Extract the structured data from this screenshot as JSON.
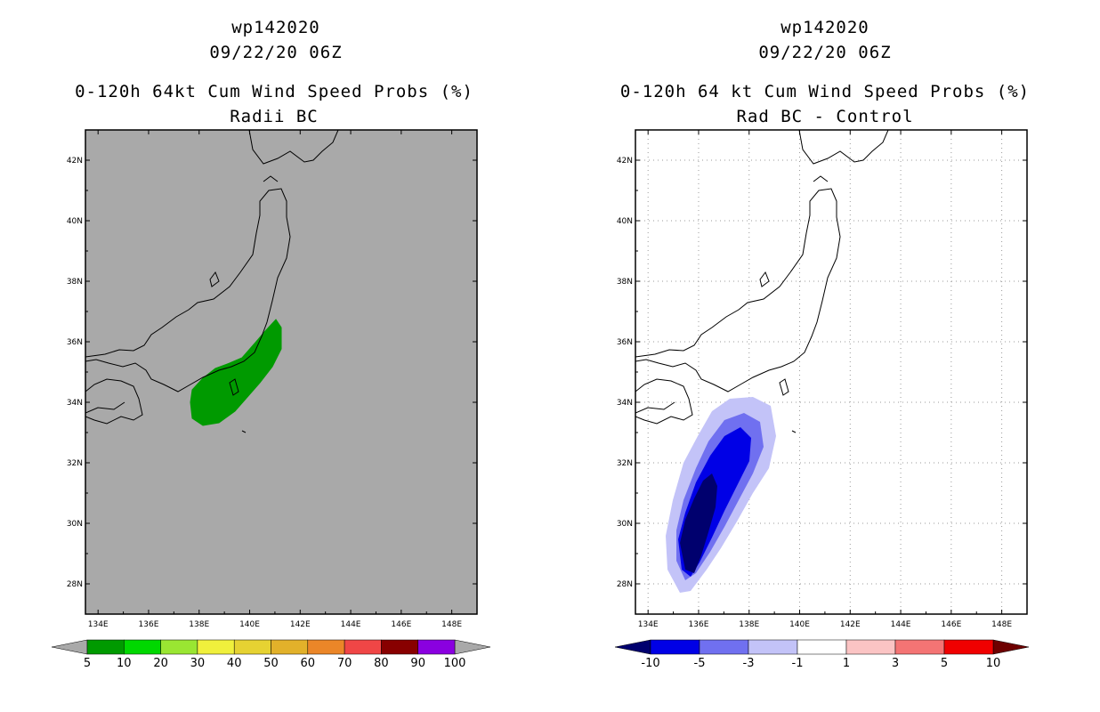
{
  "left_panel": {
    "title_line1": "wp142020",
    "title_line2": "09/22/20 06Z",
    "title_line3": "0-120h 64kt Cum Wind Speed Probs (%)",
    "title_line4": "Radii BC",
    "background_color": "#a9a9a9",
    "colorbar": {
      "colors": [
        "#009a00",
        "#00d800",
        "#9ae632",
        "#f0f03c",
        "#e6d232",
        "#e2b12a",
        "#eb8628",
        "#f04646",
        "#880000",
        "#8a00e0"
      ],
      "labels": [
        "5",
        "10",
        "20",
        "30",
        "40",
        "50",
        "60",
        "70",
        "80",
        "90",
        "100"
      ],
      "end_color": "#a9a9a9"
    }
  },
  "right_panel": {
    "title_line1": "wp142020",
    "title_line2": "09/22/20 06Z",
    "title_line3": "0-120h 64 kt Cum Wind Speed Probs (%)",
    "title_line4": "Rad BC - Control",
    "colorbar": {
      "colors": [
        "#0000e6",
        "#7070f0",
        "#c3c3f8",
        "#ffffff",
        "#fbc4c4",
        "#f47474",
        "#f00000"
      ],
      "labels": [
        "-10",
        "-5",
        "-3",
        "-1",
        "1",
        "3",
        "5",
        "10"
      ],
      "left_end_color": "#00006e",
      "right_end_color": "#6e0000"
    }
  },
  "map": {
    "lon_labels": [
      "134E",
      "136E",
      "138E",
      "140E",
      "142E",
      "144E",
      "146E",
      "148E"
    ],
    "lat_labels": [
      "28N",
      "30N",
      "32N",
      "34N",
      "36N",
      "38N",
      "40N",
      "42N"
    ],
    "lon_range": [
      133.5,
      149
    ],
    "lat_range": [
      27,
      43
    ]
  }
}
